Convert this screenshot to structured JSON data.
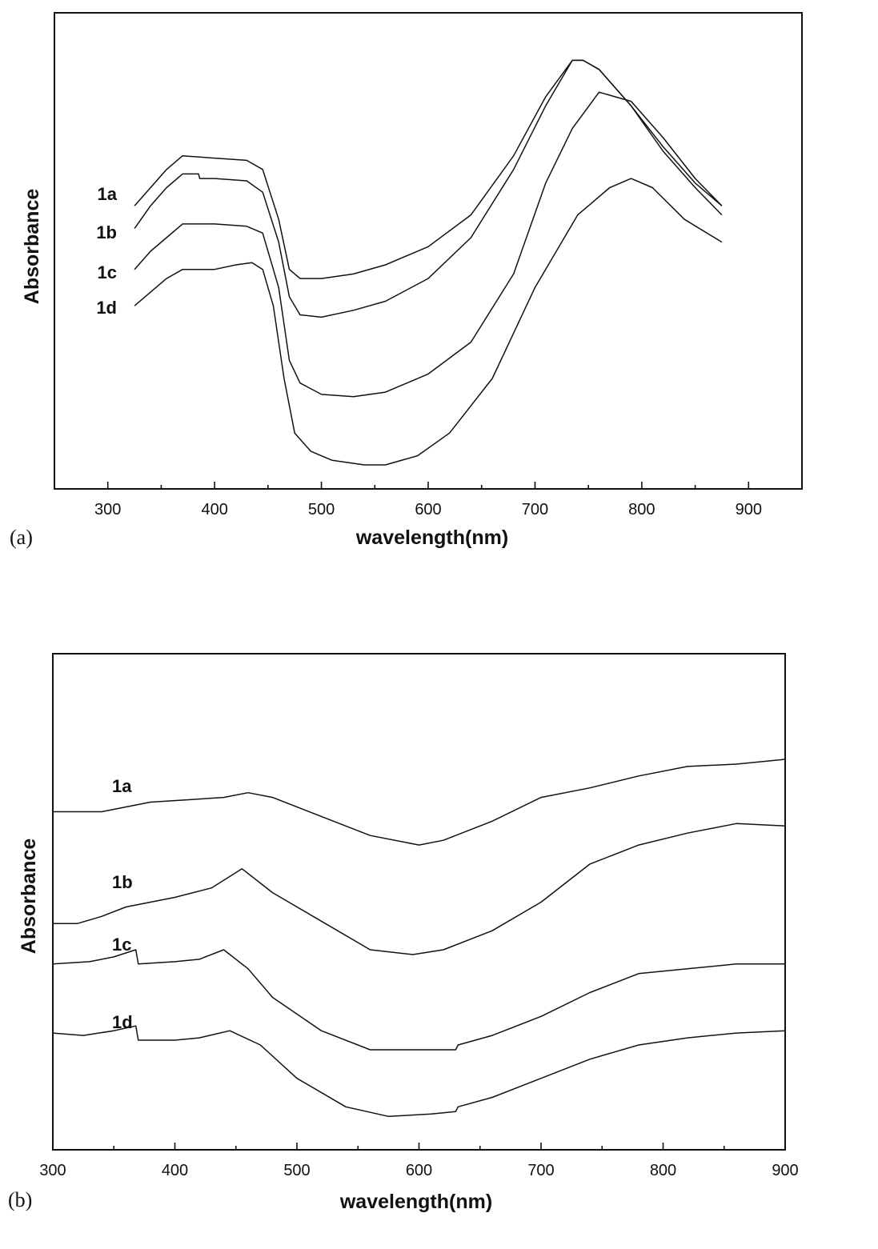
{
  "chart_data": [
    {
      "type": "line",
      "panel_label": "(a)",
      "xlabel": "wavelength(nm)",
      "ylabel": "Absorbance",
      "xlim": [
        250,
        950
      ],
      "xticks": [
        300,
        400,
        500,
        600,
        700,
        800,
        900
      ],
      "xticklabels": [
        "300",
        "400",
        "500",
        "600",
        "700",
        "800",
        "900"
      ],
      "ylim": [
        0,
        1
      ],
      "yticks": "unlabeled",
      "grid": false,
      "series": [
        {
          "name": "1a",
          "x": [
            325,
            340,
            355,
            370,
            400,
            430,
            445,
            460,
            470,
            480,
            500,
            530,
            560,
            600,
            640,
            680,
            710,
            735,
            745,
            760,
            790,
            820,
            850,
            875
          ],
          "y": [
            0.6,
            0.64,
            0.68,
            0.71,
            0.705,
            0.7,
            0.68,
            0.57,
            0.46,
            0.44,
            0.44,
            0.45,
            0.47,
            0.51,
            0.58,
            0.71,
            0.84,
            0.92,
            0.92,
            0.9,
            0.82,
            0.73,
            0.65,
            0.6
          ]
        },
        {
          "name": "1b",
          "x": [
            325,
            340,
            355,
            370,
            385,
            386,
            400,
            430,
            445,
            460,
            470,
            480,
            500,
            530,
            560,
            600,
            640,
            680,
            710,
            735,
            745,
            760,
            790,
            820,
            850,
            875
          ],
          "y": [
            0.55,
            0.6,
            0.64,
            0.67,
            0.67,
            0.66,
            0.66,
            0.655,
            0.63,
            0.52,
            0.4,
            0.36,
            0.355,
            0.37,
            0.39,
            0.44,
            0.53,
            0.68,
            0.82,
            0.92,
            0.92,
            0.9,
            0.82,
            0.72,
            0.64,
            0.58
          ]
        },
        {
          "name": "1c",
          "x": [
            325,
            340,
            355,
            370,
            400,
            430,
            445,
            460,
            470,
            480,
            500,
            530,
            560,
            600,
            640,
            680,
            710,
            735,
            760,
            790,
            820,
            850,
            875
          ],
          "y": [
            0.46,
            0.5,
            0.53,
            0.56,
            0.56,
            0.555,
            0.54,
            0.42,
            0.26,
            0.21,
            0.185,
            0.18,
            0.19,
            0.23,
            0.3,
            0.45,
            0.65,
            0.77,
            0.85,
            0.83,
            0.75,
            0.66,
            0.6
          ]
        },
        {
          "name": "1d",
          "x": [
            325,
            340,
            355,
            370,
            385,
            400,
            420,
            435,
            445,
            455,
            465,
            475,
            490,
            510,
            540,
            560,
            590,
            620,
            660,
            700,
            740,
            770,
            790,
            810,
            840,
            875
          ],
          "y": [
            0.38,
            0.41,
            0.44,
            0.46,
            0.46,
            0.46,
            0.47,
            0.475,
            0.46,
            0.38,
            0.22,
            0.1,
            0.06,
            0.04,
            0.03,
            0.03,
            0.05,
            0.1,
            0.22,
            0.42,
            0.58,
            0.64,
            0.66,
            0.64,
            0.57,
            0.52
          ]
        }
      ]
    },
    {
      "type": "line",
      "panel_label": "(b)",
      "xlabel": "wavelength(nm)",
      "ylabel": "Absorbance",
      "xlim": [
        300,
        900
      ],
      "xticks": [
        300,
        400,
        500,
        600,
        700,
        800,
        900
      ],
      "xticklabels": [
        "300",
        "400",
        "500",
        "600",
        "700",
        "800",
        "900"
      ],
      "ylim": [
        0,
        1
      ],
      "yticks": "unlabeled",
      "grid": false,
      "series": [
        {
          "name": "1a",
          "x": [
            300,
            340,
            360,
            380,
            410,
            440,
            460,
            480,
            520,
            560,
            600,
            620,
            660,
            700,
            740,
            780,
            820,
            860,
            900
          ],
          "y": [
            0.69,
            0.69,
            0.7,
            0.71,
            0.715,
            0.72,
            0.73,
            0.72,
            0.68,
            0.64,
            0.62,
            0.63,
            0.67,
            0.72,
            0.74,
            0.765,
            0.785,
            0.79,
            0.8
          ]
        },
        {
          "name": "1b",
          "x": [
            300,
            320,
            340,
            360,
            380,
            400,
            430,
            455,
            480,
            520,
            560,
            595,
            620,
            660,
            700,
            740,
            780,
            820,
            860,
            900
          ],
          "y": [
            0.455,
            0.455,
            0.47,
            0.49,
            0.5,
            0.51,
            0.53,
            0.57,
            0.52,
            0.46,
            0.4,
            0.39,
            0.4,
            0.44,
            0.5,
            0.58,
            0.62,
            0.645,
            0.665,
            0.66
          ]
        },
        {
          "name": "1c",
          "x": [
            300,
            330,
            350,
            368,
            370,
            400,
            420,
            440,
            460,
            480,
            520,
            560,
            600,
            630,
            632,
            660,
            700,
            740,
            780,
            820,
            860,
            900
          ],
          "y": [
            0.37,
            0.375,
            0.385,
            0.4,
            0.37,
            0.375,
            0.38,
            0.4,
            0.36,
            0.3,
            0.23,
            0.19,
            0.19,
            0.19,
            0.2,
            0.22,
            0.26,
            0.31,
            0.35,
            0.36,
            0.37,
            0.37
          ]
        },
        {
          "name": "1d",
          "x": [
            300,
            325,
            350,
            368,
            370,
            400,
            420,
            445,
            470,
            500,
            540,
            575,
            610,
            630,
            632,
            660,
            700,
            740,
            780,
            820,
            860,
            900
          ],
          "y": [
            0.225,
            0.22,
            0.23,
            0.24,
            0.21,
            0.21,
            0.215,
            0.23,
            0.2,
            0.13,
            0.07,
            0.05,
            0.055,
            0.06,
            0.07,
            0.09,
            0.13,
            0.17,
            0.2,
            0.215,
            0.225,
            0.23
          ]
        }
      ]
    }
  ]
}
